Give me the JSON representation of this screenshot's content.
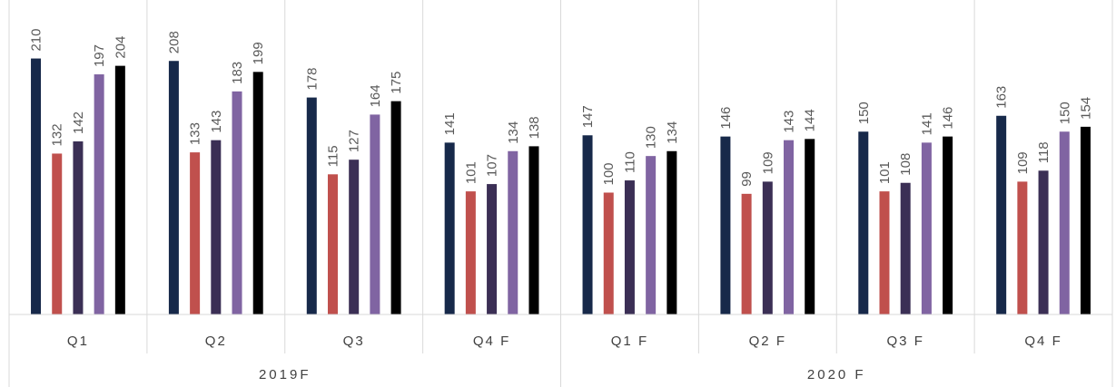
{
  "chart_data": {
    "type": "bar",
    "groups": [
      {
        "label": "2019F",
        "categories": [
          "Q1",
          "Q2",
          "Q3",
          "Q4 F"
        ]
      },
      {
        "label": "2020 F",
        "categories": [
          "Q1 F",
          "Q2 F",
          "Q3 F",
          "Q4 F"
        ]
      }
    ],
    "series": [
      {
        "color": "#17294a",
        "values": [
          210,
          208,
          178,
          141,
          147,
          146,
          150,
          163
        ]
      },
      {
        "color": "#c0504d",
        "values": [
          132,
          133,
          115,
          101,
          100,
          99,
          101,
          109
        ]
      },
      {
        "color": "#3b2f55",
        "values": [
          142,
          143,
          127,
          107,
          110,
          109,
          108,
          118
        ]
      },
      {
        "color": "#8064a2",
        "values": [
          197,
          183,
          164,
          134,
          130,
          143,
          141,
          150
        ]
      },
      {
        "color": "#000000",
        "values": [
          204,
          199,
          175,
          138,
          134,
          144,
          146,
          154
        ]
      }
    ],
    "ylim": [
      0,
      230
    ],
    "grid": false,
    "legend": "none"
  }
}
